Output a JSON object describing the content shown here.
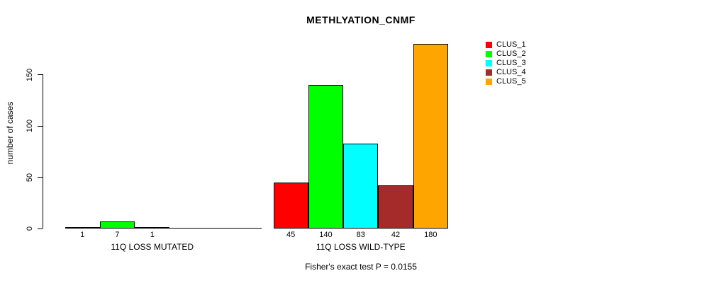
{
  "title": "METHLYATION_CNMF",
  "ylabel": "number of cases",
  "footer": "Fisher's exact test P = 0.0155",
  "legend": {
    "items": [
      {
        "label": "CLUS_1",
        "color": "#FF0000"
      },
      {
        "label": "CLUS_2",
        "color": "#00FF00"
      },
      {
        "label": "CLUS_3",
        "color": "#00FFFF"
      },
      {
        "label": "CLUS_4",
        "color": "#A52A2A"
      },
      {
        "label": "CLUS_5",
        "color": "#FFA500"
      }
    ]
  },
  "chart_data": {
    "type": "bar",
    "title": "METHLYATION_CNMF",
    "ylabel": "number of cases",
    "ylim": [
      0,
      150
    ],
    "yticks": [
      0,
      50,
      100,
      150
    ],
    "grid": false,
    "legend_position": "right",
    "categories": [
      "CLUS_1",
      "CLUS_2",
      "CLUS_3",
      "CLUS_4",
      "CLUS_5"
    ],
    "colors": [
      "#FF0000",
      "#00FF00",
      "#00FFFF",
      "#A52A2A",
      "#FFA500"
    ],
    "groups": [
      {
        "label": "11Q LOSS MUTATED",
        "values": [
          1,
          7,
          1,
          0,
          0
        ]
      },
      {
        "label": "11Q LOSS WILD-TYPE",
        "values": [
          45,
          140,
          83,
          42,
          180
        ]
      }
    ],
    "annotation": "Fisher's exact test P = 0.0155"
  }
}
